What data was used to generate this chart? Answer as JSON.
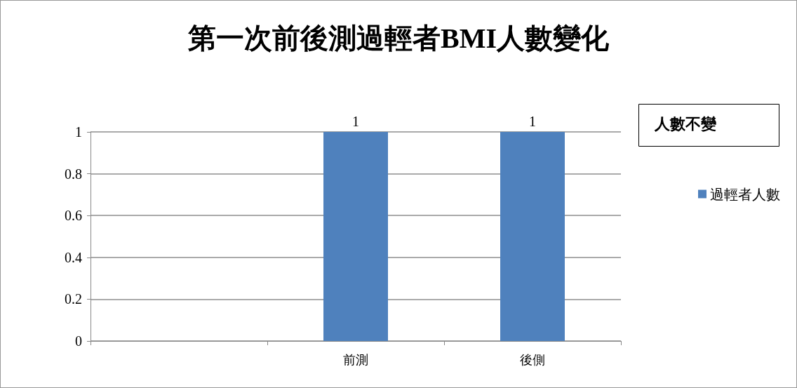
{
  "chart_data": {
    "type": "bar",
    "title": "第一次前後測過輕者BMI人數變化",
    "categories": [
      null,
      "前測",
      "後側"
    ],
    "series": [
      {
        "name": "過輕者人數",
        "color": "#4f81bd",
        "values": [
          null,
          1,
          1
        ]
      }
    ],
    "ylim": [
      0,
      1
    ],
    "yticks": [
      0,
      0.2,
      0.4,
      0.6,
      0.8,
      1
    ],
    "grid": "y",
    "legend": "right",
    "data_labels": true,
    "annotations": [
      "人數不變"
    ]
  }
}
